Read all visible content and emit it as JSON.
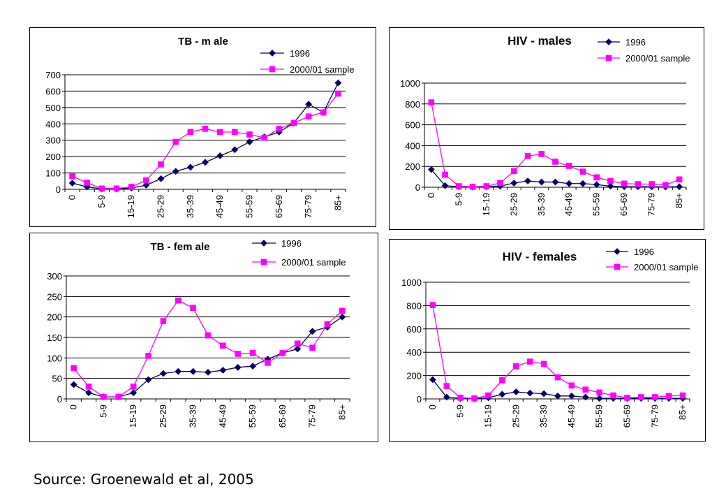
{
  "source_note": "Source: Groenewald et al, 2005",
  "chart_data": [
    {
      "id": "tb-male",
      "type": "line",
      "title": "TB - m ale",
      "categories": [
        "0",
        "",
        "5-9",
        "",
        "15-19",
        "",
        "25-29",
        "",
        "35-39",
        "",
        "45-49",
        "",
        "55-59",
        "",
        "65-69",
        "",
        "75-79",
        "",
        "85+"
      ],
      "ylim": [
        0,
        700
      ],
      "yticks": [
        0,
        100,
        200,
        300,
        400,
        500,
        600,
        700
      ],
      "grid": true,
      "legend_position": "top-right",
      "series": [
        {
          "name": "1996",
          "color": "#000066",
          "marker": "diamond",
          "values": [
            38,
            15,
            3,
            2,
            8,
            25,
            65,
            110,
            135,
            165,
            205,
            242,
            290,
            320,
            350,
            405,
            520,
            470,
            650
          ]
        },
        {
          "name": "2000/01 sample",
          "color": "#ff00ff",
          "marker": "square",
          "values": [
            80,
            40,
            5,
            5,
            15,
            55,
            152,
            290,
            350,
            370,
            350,
            350,
            335,
            315,
            370,
            405,
            445,
            470,
            585
          ]
        }
      ]
    },
    {
      "id": "hiv-male",
      "type": "line",
      "title": "HIV - males",
      "categories": [
        "0",
        "",
        "5-9",
        "",
        "15-19",
        "",
        "25-29",
        "",
        "35-39",
        "",
        "45-49",
        "",
        "55-59",
        "",
        "65-69",
        "",
        "75-79",
        "",
        "85+"
      ],
      "ylim": [
        0,
        1000
      ],
      "yticks": [
        0,
        200,
        400,
        600,
        800,
        1000
      ],
      "grid": true,
      "legend_position": "top-right",
      "series": [
        {
          "name": "1996",
          "color": "#000066",
          "marker": "diamond",
          "values": [
            170,
            15,
            5,
            2,
            5,
            10,
            40,
            60,
            50,
            50,
            35,
            35,
            25,
            10,
            5,
            5,
            5,
            3,
            5
          ]
        },
        {
          "name": "2000/01 sample",
          "color": "#ff00ff",
          "marker": "square",
          "values": [
            815,
            120,
            10,
            5,
            10,
            40,
            155,
            300,
            320,
            245,
            205,
            150,
            95,
            60,
            35,
            30,
            30,
            20,
            75
          ]
        }
      ]
    },
    {
      "id": "tb-female",
      "type": "line",
      "title": "TB - fem ale",
      "categories": [
        "0",
        "",
        "5-9",
        "",
        "15-19",
        "",
        "25-29",
        "",
        "35-39",
        "",
        "45-49",
        "",
        "55-59",
        "",
        "65-69",
        "",
        "75-79",
        "",
        "85+"
      ],
      "ylim": [
        0,
        300
      ],
      "yticks": [
        0,
        50,
        100,
        150,
        200,
        250,
        300
      ],
      "grid": true,
      "legend_position": "top-right",
      "series": [
        {
          "name": "1996",
          "color": "#000066",
          "marker": "diamond",
          "values": [
            35,
            15,
            5,
            5,
            15,
            47,
            62,
            67,
            67,
            65,
            70,
            77,
            80,
            97,
            112,
            122,
            165,
            175,
            200
          ]
        },
        {
          "name": "2000/01 sample",
          "color": "#ff00ff",
          "marker": "square",
          "values": [
            75,
            30,
            5,
            5,
            30,
            105,
            190,
            240,
            222,
            155,
            130,
            110,
            112,
            88,
            112,
            135,
            125,
            182,
            215
          ]
        }
      ]
    },
    {
      "id": "hiv-female",
      "type": "line",
      "title": "HIV - females",
      "categories": [
        "0",
        "",
        "5-9",
        "",
        "15-19",
        "",
        "25-29",
        "",
        "35-39",
        "",
        "45-49",
        "",
        "55-59",
        "",
        "65-69",
        "",
        "75-79",
        "",
        "85+"
      ],
      "ylim": [
        0,
        1000
      ],
      "yticks": [
        0,
        200,
        400,
        600,
        800,
        1000
      ],
      "grid": true,
      "legend_position": "top-right",
      "series": [
        {
          "name": "1996",
          "color": "#000066",
          "marker": "diamond",
          "values": [
            165,
            15,
            5,
            2,
            10,
            40,
            60,
            50,
            45,
            25,
            25,
            15,
            5,
            5,
            5,
            5,
            5,
            5,
            5
          ]
        },
        {
          "name": "2000/01 sample",
          "color": "#ff00ff",
          "marker": "square",
          "values": [
            805,
            110,
            10,
            5,
            30,
            160,
            280,
            320,
            300,
            185,
            115,
            80,
            55,
            30,
            10,
            15,
            15,
            25,
            30
          ]
        }
      ]
    }
  ]
}
